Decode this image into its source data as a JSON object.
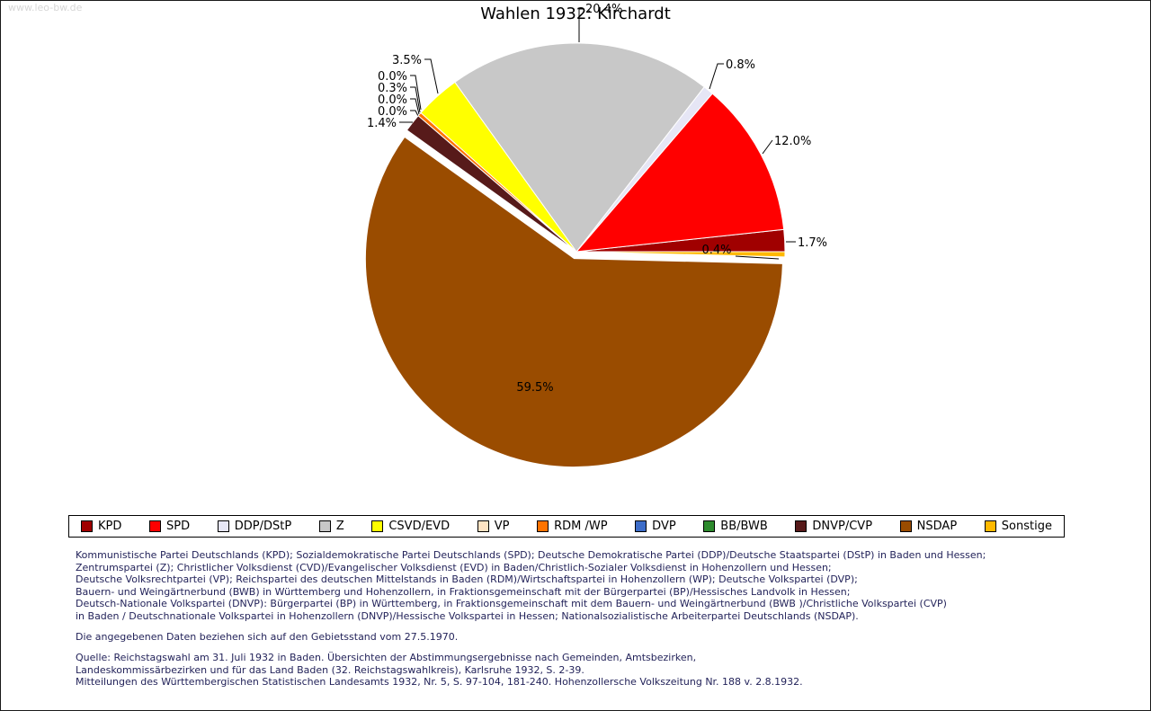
{
  "page": {
    "watermark": "www.leo-bw.de",
    "title": "Wahlen 1932: Kirchardt"
  },
  "chart_data": {
    "type": "pie",
    "title": "Wahlen 1932: Kirchardt",
    "unit": "percent",
    "start_angle_deg": 0,
    "direction": "counterclockwise",
    "legend_position": "bottom",
    "series": [
      {
        "name": "KPD",
        "value": 1.7,
        "color": "#a00000"
      },
      {
        "name": "SPD",
        "value": 12.0,
        "color": "#ff0000"
      },
      {
        "name": "DDP/DStP",
        "value": 0.8,
        "color": "#e6e6f5"
      },
      {
        "name": "Z",
        "value": 20.4,
        "color": "#c8c8c8"
      },
      {
        "name": "CSVD/EVD",
        "value": 3.5,
        "color": "#ffff00"
      },
      {
        "name": "VP",
        "value": 0.0,
        "color": "#ffe3c3"
      },
      {
        "name": "RDM /WP",
        "value": 0.3,
        "color": "#ff7300"
      },
      {
        "name": "DVP",
        "value": 0.0,
        "color": "#3c6cc8"
      },
      {
        "name": "BB/BWB",
        "value": 0.0,
        "color": "#2e8b2e"
      },
      {
        "name": "DNVP/CVP",
        "value": 1.4,
        "color": "#571a1a"
      },
      {
        "name": "NSDAP",
        "value": 59.5,
        "color": "#9a4c00",
        "exploded": true
      },
      {
        "name": "Sonstige",
        "value": 0.4,
        "color": "#ffb900"
      }
    ]
  },
  "footnotes": {
    "party_description_lines": [
      "Kommunistische Partei Deutschlands (KPD); Sozialdemokratische Partei Deutschlands (SPD); Deutsche Demokratische Partei (DDP)/Deutsche Staatspartei (DStP) in Baden und Hessen;",
      "Zentrumspartei (Z); Christlicher Volksdienst (CVD)/Evangelischer Volksdienst (EVD) in Baden/Christlich-Sozialer Volksdienst in Hohenzollern und Hessen;",
      "Deutsche Volksrechtpartei (VP); Reichspartei des deutschen Mittelstands in Baden (RDM)/Wirtschaftspartei in Hohenzollern (WP); Deutsche Volkspartei (DVP);",
      "Bauern- und Weingärtnerbund (BWB) in Württemberg und Hohenzollern, in Fraktionsgemeinschaft mit der Bürgerpartei (BP)/Hessisches Landvolk in Hessen;",
      "Deutsch-Nationale Volkspartei (DNVP): Bürgerpartei (BP) in Württemberg, in Fraktionsgemeinschaft mit dem Bauern- und Weingärtnerbund (BWB )/Christliche Volkspartei (CVP)",
      "in Baden / Deutschnationale Volkspartei in Hohenzollern (DNVP)/Hessische Volkspartei in Hessen; Nationalsozialistische Arbeiterpartei Deutschlands (NSDAP)."
    ],
    "territorial_note": "Die angegebenen Daten beziehen sich auf den Gebietsstand vom 27.5.1970.",
    "source_lines": [
      "Quelle: Reichstagswahl am 31. Juli 1932 in Baden. Übersichten der Abstimmungsergebnisse nach Gemeinden, Amtsbezirken,",
      "Landeskommissärbezirken und für das Land Baden (32. Reichstagswahlkreis), Karlsruhe 1932, S. 2-39.",
      "Mitteilungen des Württembergischen Statistischen Landesamts 1932, Nr. 5, S. 97-104, 181-240. Hohenzollersche Volkszeitung Nr. 188 v. 2.8.1932."
    ]
  }
}
